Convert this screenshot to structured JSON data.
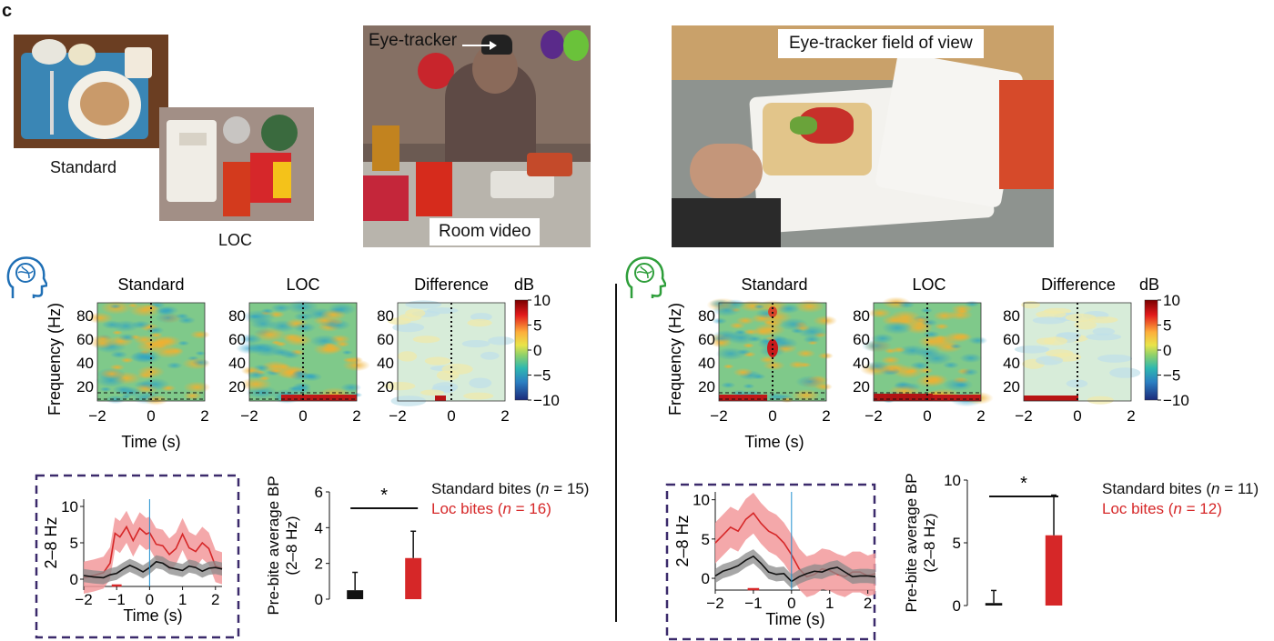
{
  "panel_letter": "c",
  "photos": {
    "standard_label": "Standard",
    "loc_label": "LOC",
    "eye_tracker_label": "Eye-tracker",
    "room_video_label": "Room video",
    "fov_label": "Eye-tracker field of view"
  },
  "colors": {
    "loc_red": "#d62728",
    "standard_black": "#111111",
    "left_brain_icon": "#1f6fb5",
    "right_brain_icon": "#2e9e3a",
    "dashed_box": "#3b2a6b",
    "onset_line": "#1f8fcf"
  },
  "icons": {
    "left": "brain-head-icon",
    "right": "brain-head-icon"
  },
  "spectrograms": {
    "titles": [
      "Standard",
      "LOC",
      "Difference"
    ],
    "ylabel": "Frequency (Hz)",
    "xlabel": "Time (s)",
    "x_ticks": [
      "−2",
      "0",
      "2"
    ],
    "y_ticks": [
      "80",
      "60",
      "40",
      "20"
    ],
    "colorbar_unit": "dB",
    "colorbar_ticks": [
      "10",
      "5",
      "0",
      "−5",
      "−10"
    ]
  },
  "chart_data": [
    {
      "type": "line",
      "panel": "left-timecourse",
      "ylabel": "2–8 Hz",
      "xlabel": "Time (s)",
      "xlim": [
        -2,
        2.2
      ],
      "ylim": [
        -1,
        11
      ],
      "x_ticks": [
        "−2",
        "−1",
        "0",
        "1",
        "2"
      ],
      "y_ticks": [
        "0",
        "5",
        "10"
      ],
      "series": [
        {
          "name": "LOC",
          "color": "#d62728",
          "x": [
            -2,
            -1.7,
            -1.4,
            -1.2,
            -1.05,
            -0.9,
            -0.7,
            -0.5,
            -0.3,
            -0.1,
            0,
            0.2,
            0.4,
            0.6,
            0.8,
            1.0,
            1.2,
            1.4,
            1.6,
            1.8,
            2.0,
            2.2
          ],
          "y": [
            0.2,
            0.5,
            0.9,
            2.2,
            6.3,
            5.8,
            7.2,
            5.3,
            7.0,
            6.2,
            6.4,
            4.8,
            4.6,
            3.4,
            4.2,
            6.2,
            4.3,
            3.8,
            5.0,
            4.2,
            1.8,
            1.5
          ],
          "band": 2.2
        },
        {
          "name": "Standard",
          "color": "#111111",
          "x": [
            -2,
            -1.7,
            -1.4,
            -1.2,
            -1.0,
            -0.8,
            -0.6,
            -0.4,
            -0.2,
            0,
            0.2,
            0.4,
            0.6,
            0.8,
            1.0,
            1.2,
            1.4,
            1.6,
            1.8,
            2.0,
            2.2
          ],
          "y": [
            0.5,
            0.3,
            0.2,
            0.6,
            0.8,
            1.4,
            1.9,
            1.5,
            1.0,
            1.6,
            2.4,
            2.2,
            1.6,
            1.4,
            1.2,
            1.8,
            1.6,
            1.1,
            1.5,
            1.6,
            1.4
          ],
          "band": 0.9
        }
      ]
    },
    {
      "type": "bar",
      "panel": "left-bars",
      "ylabel": "Pre-bite average BP (2–8 Hz)",
      "ylim": [
        0,
        6
      ],
      "y_ticks": [
        "0",
        "2",
        "4",
        "6"
      ],
      "categories": [
        "Standard",
        "Loc"
      ],
      "values": [
        0.5,
        2.3
      ],
      "errors": [
        1.0,
        1.5
      ],
      "significance": "*",
      "legend": [
        {
          "text": "Standard bites (",
          "n_text": "n",
          "tail": " = 15)",
          "color": "#111111"
        },
        {
          "text": "Loc bites (",
          "n_text": "n",
          "tail": " = 16)",
          "color": "#d62728"
        }
      ]
    },
    {
      "type": "line",
      "panel": "right-timecourse",
      "ylabel": "2–8 Hz",
      "xlabel": "Time (s)",
      "xlim": [
        -2,
        2.2
      ],
      "ylim": [
        -1.5,
        11
      ],
      "x_ticks": [
        "−2",
        "−1",
        "0",
        "1",
        "2"
      ],
      "y_ticks": [
        "0",
        "5",
        "10"
      ],
      "series": [
        {
          "name": "LOC",
          "color": "#d62728",
          "x": [
            -2,
            -1.8,
            -1.6,
            -1.4,
            -1.2,
            -1.0,
            -0.8,
            -0.6,
            -0.4,
            -0.2,
            0,
            0.2,
            0.4,
            0.6,
            0.8,
            1.0,
            1.2,
            1.4,
            1.6,
            1.8,
            2.0,
            2.2
          ],
          "y": [
            4.5,
            5.5,
            6.5,
            6.0,
            7.5,
            8.3,
            7.0,
            6.0,
            5.5,
            4.5,
            3.0,
            1.2,
            0.2,
            0.5,
            1.2,
            1.0,
            0.5,
            0.2,
            0.8,
            0.8,
            0.3,
            0.6
          ],
          "band": 2.6
        },
        {
          "name": "Standard",
          "color": "#111111",
          "x": [
            -2,
            -1.8,
            -1.6,
            -1.4,
            -1.2,
            -1.0,
            -0.8,
            -0.6,
            -0.4,
            -0.2,
            0,
            0.2,
            0.4,
            0.6,
            0.8,
            1.0,
            1.2,
            1.4,
            1.6,
            1.8,
            2.0,
            2.2
          ],
          "y": [
            0.3,
            0.9,
            1.2,
            1.6,
            2.3,
            2.8,
            1.9,
            0.8,
            0.5,
            0.6,
            -0.4,
            0.2,
            0.6,
            0.9,
            0.8,
            1.2,
            1.4,
            0.8,
            0.2,
            0.3,
            0.3,
            0.2
          ],
          "band": 0.9
        }
      ]
    },
    {
      "type": "bar",
      "panel": "right-bars",
      "ylabel": "Pre-bite average BP (2–8 Hz)",
      "ylim": [
        0,
        10
      ],
      "y_ticks": [
        "0",
        "5",
        "10"
      ],
      "categories": [
        "Standard",
        "Loc"
      ],
      "values": [
        0.2,
        5.6
      ],
      "errors": [
        1.0,
        3.2
      ],
      "significance": "*",
      "legend": [
        {
          "text": "Standard bites (",
          "n_text": "n",
          "tail": " = 11)",
          "color": "#111111"
        },
        {
          "text": "Loc bites (",
          "n_text": "n",
          "tail": " = 12)",
          "color": "#d62728"
        }
      ]
    }
  ]
}
